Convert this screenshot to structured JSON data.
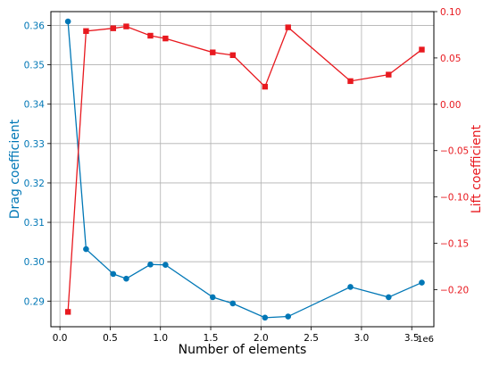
{
  "chart_data": {
    "type": "line",
    "xlabel": "Number of elements",
    "x_offset_label": "1e6",
    "x_ticks": [
      0.0,
      0.5,
      1.0,
      1.5,
      2.0,
      2.5,
      3.0,
      3.5
    ],
    "x_tick_labels": [
      "0.0",
      "0.5",
      "1.0",
      "1.5",
      "2.0",
      "2.5",
      "3.0",
      "3.5"
    ],
    "xlim": [
      -0.09,
      3.72
    ],
    "grid": true,
    "left_axis": {
      "ylabel": "Drag coefficient",
      "ylim": [
        0.2835,
        0.3635
      ],
      "ticks": [
        0.29,
        0.3,
        0.31,
        0.32,
        0.33,
        0.34,
        0.35,
        0.36
      ],
      "tick_labels": [
        "0.29",
        "0.30",
        "0.31",
        "0.32",
        "0.33",
        "0.34",
        "0.35",
        "0.36"
      ],
      "color": "#0077b6"
    },
    "right_axis": {
      "ylabel": "Lift coefficient",
      "ylim": [
        -0.24,
        0.1
      ],
      "ticks": [
        -0.2,
        -0.15,
        -0.1,
        -0.05,
        0.0,
        0.05,
        0.1
      ],
      "tick_labels": [
        "−0.20",
        "−0.15",
        "−0.10",
        "−0.05",
        "0.00",
        "0.05",
        "0.10"
      ],
      "color": "#e8191f"
    },
    "series": [
      {
        "axis": "left",
        "marker": "circle",
        "color": "#0077b6",
        "x": [
          0.08,
          0.26,
          0.53,
          0.66,
          0.9,
          1.05,
          1.52,
          1.72,
          2.04,
          2.27,
          2.89,
          3.27,
          3.6
        ],
        "y": [
          0.361,
          0.3032,
          0.2969,
          0.2957,
          0.2993,
          0.2992,
          0.291,
          0.2894,
          0.2858,
          0.2861,
          0.2936,
          0.291,
          0.2947
        ]
      },
      {
        "axis": "right",
        "marker": "square",
        "color": "#e8191f",
        "x": [
          0.08,
          0.26,
          0.53,
          0.66,
          0.9,
          1.05,
          1.52,
          1.72,
          2.04,
          2.27,
          2.89,
          3.27,
          3.6
        ],
        "y": [
          -0.224,
          0.079,
          0.082,
          0.084,
          0.074,
          0.071,
          0.056,
          0.053,
          0.019,
          0.083,
          0.025,
          0.032,
          0.059
        ]
      }
    ]
  }
}
